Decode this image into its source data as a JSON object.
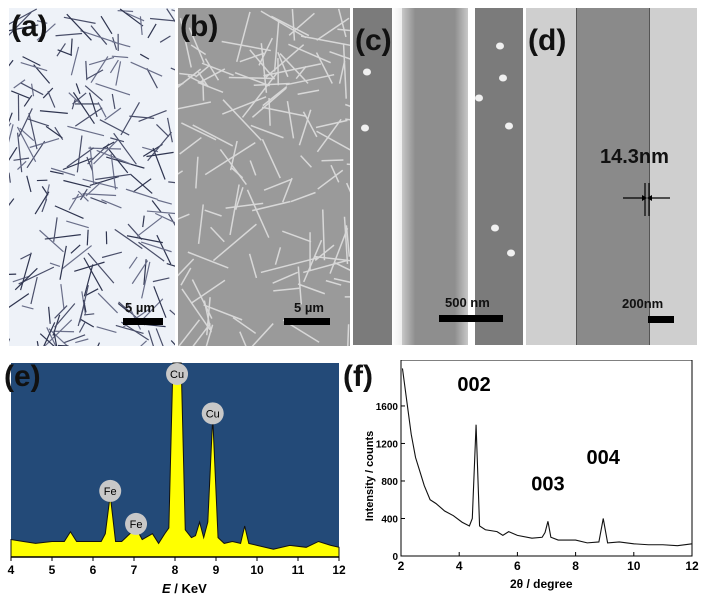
{
  "panels": {
    "a": {
      "label": "(a)",
      "scale_bar": "5 µm"
    },
    "b": {
      "label": "(b)",
      "scale_bar": "5 µm"
    },
    "c": {
      "label": "(c)",
      "scale_bar": "500 nm"
    },
    "d": {
      "label": "(d)",
      "scale_bar": "200nm",
      "annotation": "14.3nm"
    },
    "e": {
      "label": "(e)"
    },
    "f": {
      "label": "(f)"
    }
  },
  "colors": {
    "eds_background": "#234a78",
    "eds_fill": "#ffff00",
    "peak_badge": "#c8c8c8"
  },
  "chart_data": [
    {
      "type": "area",
      "panel": "e",
      "xlabel_italic": "E",
      "xlabel": " / KeV",
      "ylabel": "",
      "xlim": [
        4,
        12
      ],
      "ylim": [
        0,
        100
      ],
      "xticks": [
        "4",
        "5",
        "6",
        "7",
        "8",
        "9",
        "10",
        "11",
        "12"
      ],
      "x": [
        4.0,
        4.3,
        4.6,
        5.0,
        5.3,
        5.45,
        5.6,
        6.0,
        6.2,
        6.3,
        6.42,
        6.55,
        6.7,
        6.9,
        7.05,
        7.2,
        7.45,
        7.6,
        7.75,
        7.85,
        7.95,
        8.05,
        8.15,
        8.25,
        8.4,
        8.5,
        8.6,
        8.7,
        8.8,
        8.92,
        9.05,
        9.2,
        9.4,
        9.6,
        9.7,
        9.8,
        10.0,
        10.4,
        10.8,
        11.2,
        11.5,
        11.8,
        12.0
      ],
      "y": [
        9,
        8,
        7,
        8,
        8,
        13,
        8,
        8,
        8,
        12,
        32,
        8,
        8,
        12,
        15,
        9,
        12,
        7,
        12,
        15,
        100,
        100,
        100,
        14,
        10,
        11,
        18,
        10,
        18,
        72,
        10,
        7,
        8,
        7,
        16,
        7,
        6,
        4,
        6,
        5,
        8,
        6,
        5
      ],
      "peak_labels": [
        {
          "text": "Cu",
          "x": 8.05,
          "y": 100
        },
        {
          "text": "Cu",
          "x": 8.92,
          "y": 72
        },
        {
          "text": "Fe",
          "x": 6.42,
          "y": 32
        },
        {
          "text": "Fe",
          "x": 7.05,
          "y": 15
        }
      ]
    },
    {
      "type": "line",
      "panel": "f",
      "xlabel": "2θ / degree",
      "ylabel": "Intensity / counts",
      "xlim": [
        2,
        12
      ],
      "ylim": [
        0,
        2090
      ],
      "xticks": [
        "2",
        "4",
        "6",
        "8",
        "10",
        "12"
      ],
      "yticks": [
        "0",
        "400",
        "800",
        "1200",
        "1600"
      ],
      "x": [
        2.05,
        2.2,
        2.35,
        2.5,
        2.65,
        2.8,
        3.0,
        3.2,
        3.5,
        3.8,
        4.1,
        4.35,
        4.45,
        4.58,
        4.7,
        4.9,
        5.3,
        5.5,
        5.7,
        6.0,
        6.5,
        6.85,
        6.95,
        7.05,
        7.15,
        7.4,
        8.0,
        8.4,
        8.8,
        8.95,
        9.1,
        9.5,
        10.0,
        10.5,
        11.0,
        11.5,
        12.0
      ],
      "y": [
        2000,
        1650,
        1300,
        1050,
        900,
        750,
        600,
        560,
        480,
        430,
        360,
        320,
        400,
        1400,
        320,
        280,
        260,
        220,
        260,
        220,
        190,
        200,
        250,
        370,
        200,
        170,
        170,
        140,
        150,
        400,
        140,
        150,
        130,
        120,
        120,
        110,
        130
      ],
      "peak_labels": [
        {
          "text": "002",
          "x": 4.58
        },
        {
          "text": "003",
          "x": 7.05
        },
        {
          "text": "004",
          "x": 8.95
        }
      ]
    }
  ]
}
